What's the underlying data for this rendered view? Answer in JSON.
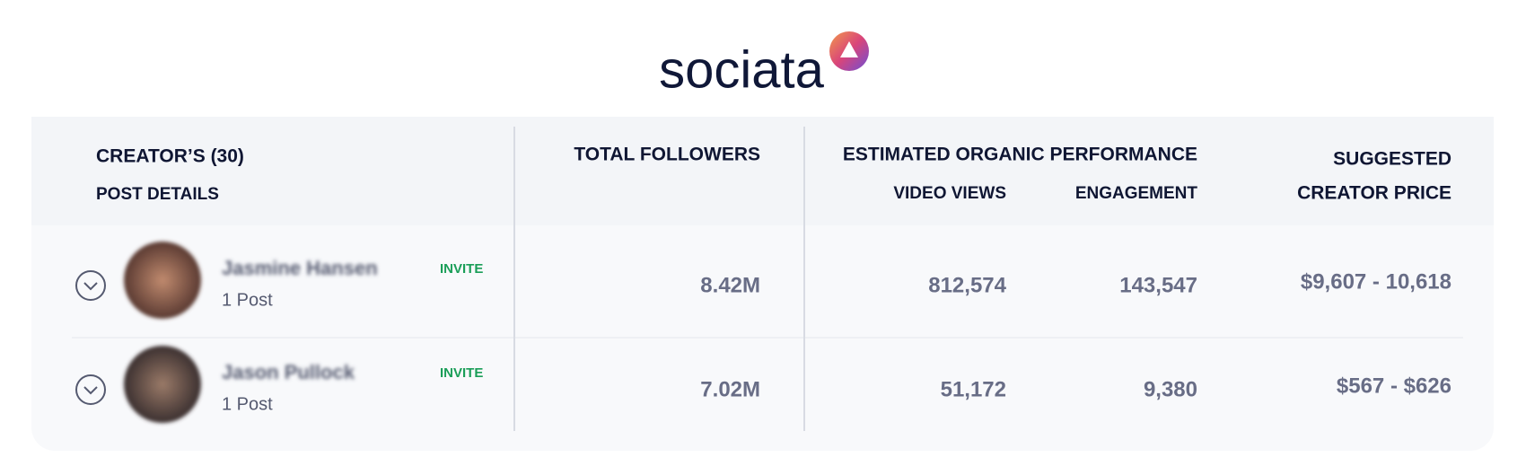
{
  "logo": {
    "text": "sociata"
  },
  "table": {
    "headers": {
      "creators": "CREATOR’S (30)",
      "post_details": "POST DETAILS",
      "total_followers": "TOTAL FOLLOWERS",
      "organic": "ESTIMATED ORGANIC PERFORMANCE",
      "video_views": "VIDEO VIEWS",
      "engagement": "ENGAGEMENT",
      "price_line1": "SUGGESTED",
      "price_line2": "CREATOR PRICE"
    },
    "rows": [
      {
        "name": "Jasmine Hansen",
        "posts": "1 Post",
        "action": "INVITE",
        "followers": "8.42M",
        "video_views": "812,574",
        "engagement": "143,547",
        "price": "$9,607 - 10,618"
      },
      {
        "name": "Jason Pullock",
        "posts": "1 Post",
        "action": "INVITE",
        "followers": "7.02M",
        "video_views": "51,172",
        "engagement": "9,380",
        "price": "$567 - $626"
      }
    ]
  }
}
